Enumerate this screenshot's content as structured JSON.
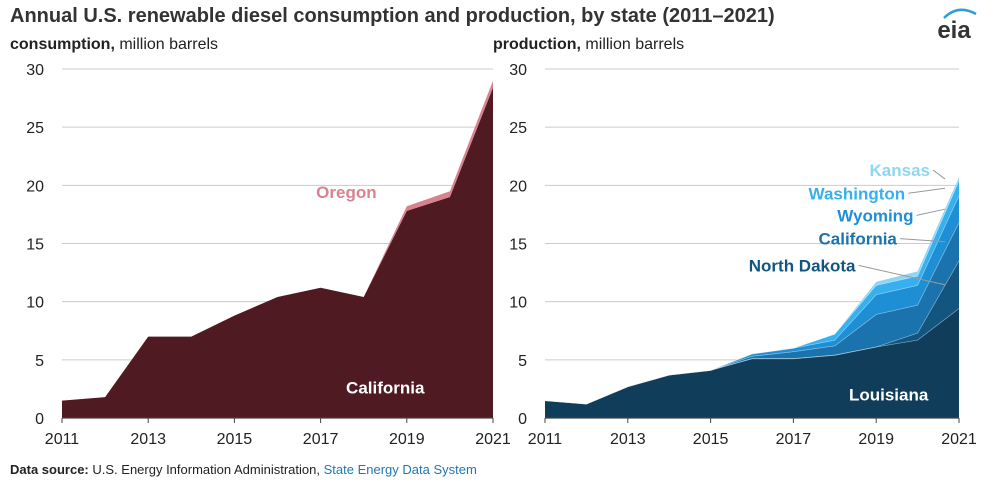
{
  "header": {
    "title": "Annual U.S. renewable diesel consumption and production, by state (2011–2021)",
    "logo_text": "eia"
  },
  "footer": {
    "source_label": "Data source:",
    "source_text": "U.S. Energy Information Administration,",
    "source_link": "State Energy Data System"
  },
  "colors": {
    "Oregon": "#d9828f",
    "California_consumption": "#4f1a21",
    "Louisiana": "#103d5a",
    "North Dakota": "#125680",
    "California_production": "#1b73ad",
    "Wyoming": "#1f8fd5",
    "Washington": "#36b0ee",
    "Kansas": "#8fd6f5",
    "grid": "#cccccc",
    "axis": "#444444"
  },
  "chart_data": [
    {
      "type": "area",
      "stacked": true,
      "unit_bold": "consumption,",
      "unit_rest": " million barrels",
      "x": [
        2011,
        2012,
        2013,
        2014,
        2015,
        2016,
        2017,
        2018,
        2019,
        2020,
        2021
      ],
      "xticks": [
        2011,
        2013,
        2015,
        2017,
        2019,
        2021
      ],
      "yticks": [
        0,
        5,
        10,
        15,
        20,
        25,
        30
      ],
      "ylim": [
        0,
        30
      ],
      "series": [
        {
          "name": "California",
          "color_key": "California_consumption",
          "values": [
            1.5,
            1.8,
            7.0,
            7.0,
            8.8,
            10.4,
            11.2,
            10.4,
            17.8,
            19.0,
            28.4
          ]
        },
        {
          "name": "Oregon",
          "color_key": "Oregon",
          "values": [
            0,
            0,
            0,
            0,
            0,
            0,
            0,
            0,
            0.4,
            0.5,
            0.6
          ]
        }
      ],
      "labels": [
        {
          "text": "California",
          "series": "California",
          "color": "#ffffff",
          "at": [
            2018.5,
            2.1
          ]
        },
        {
          "text": "Oregon",
          "series": "Oregon",
          "color": "#d9828f",
          "at": [
            2018.3,
            18.9
          ]
        }
      ]
    },
    {
      "type": "area",
      "stacked": true,
      "unit_bold": "production,",
      "unit_rest": " million barrels",
      "x": [
        2011,
        2012,
        2013,
        2014,
        2015,
        2016,
        2017,
        2018,
        2019,
        2020,
        2021
      ],
      "xticks": [
        2011,
        2013,
        2015,
        2017,
        2019,
        2021
      ],
      "yticks": [
        0,
        5,
        10,
        15,
        20,
        25,
        30
      ],
      "ylim": [
        0,
        30
      ],
      "series": [
        {
          "name": "Louisiana",
          "color_key": "Louisiana",
          "values": [
            1.5,
            1.2,
            2.7,
            3.7,
            4.1,
            5.1,
            5.1,
            5.4,
            6.1,
            6.7,
            9.4
          ]
        },
        {
          "name": "North Dakota",
          "color_key": "North Dakota",
          "values": [
            0,
            0,
            0,
            0,
            0,
            0,
            0,
            0,
            0,
            0.6,
            4.1
          ]
        },
        {
          "name": "California",
          "color_key": "California_production",
          "values": [
            0,
            0,
            0,
            0,
            0,
            0.2,
            0.6,
            0.8,
            2.8,
            2.4,
            3.3
          ]
        },
        {
          "name": "Wyoming",
          "color_key": "Wyoming",
          "values": [
            0,
            0,
            0,
            0,
            0,
            0.2,
            0.3,
            0.5,
            1.7,
            1.7,
            2.3
          ]
        },
        {
          "name": "Washington",
          "color_key": "Washington",
          "values": [
            0,
            0,
            0,
            0,
            0,
            0,
            0,
            0.5,
            0.8,
            0.8,
            1.3
          ]
        },
        {
          "name": "Kansas",
          "color_key": "Kansas",
          "values": [
            0,
            0,
            0,
            0,
            0,
            0,
            0,
            0,
            0.3,
            0.4,
            0.3
          ]
        }
      ],
      "labels": [
        {
          "text": "Louisiana",
          "series": "Louisiana",
          "color": "#ffffff",
          "at": [
            2019.3,
            1.5
          ]
        },
        {
          "text": "North Dakota",
          "series": "North Dakota",
          "color": "#125680",
          "at": [
            2018.5,
            12.6
          ]
        },
        {
          "text": "California",
          "series": "California",
          "color": "#1b73ad",
          "at": [
            2019.5,
            14.9
          ]
        },
        {
          "text": "Wyoming",
          "series": "Wyoming",
          "color": "#1f8fd5",
          "at": [
            2019.9,
            16.9
          ]
        },
        {
          "text": "Washington",
          "series": "Washington",
          "color": "#36b0ee",
          "at": [
            2019.7,
            18.8
          ]
        },
        {
          "text": "Kansas",
          "series": "Kansas",
          "color": "#8fd6f5",
          "at": [
            2020.3,
            20.8
          ]
        }
      ]
    }
  ]
}
